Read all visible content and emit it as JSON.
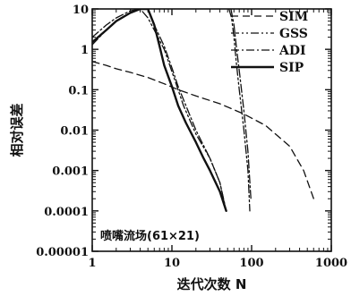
{
  "chart_data": {
    "type": "line",
    "title": "",
    "xlabel": "迭代次数 N",
    "ylabel": "相对误差",
    "x_scale": "log",
    "y_scale": "log",
    "xlim": [
      1,
      1000
    ],
    "ylim": [
      1e-05,
      10
    ],
    "x_ticks": [
      1,
      10,
      100,
      1000
    ],
    "x_tick_labels": [
      "1",
      "10",
      "100",
      "1000"
    ],
    "y_ticks": [
      1e-05,
      0.0001,
      0.001,
      0.01,
      0.1,
      1,
      10
    ],
    "y_tick_labels": [
      "0.00001",
      "0.0001",
      "0.001",
      "0.01",
      "0.1",
      "1",
      "10"
    ],
    "grid": false,
    "legend_position": "top-right",
    "annotation": "喷嘴流场(61×21)",
    "series": [
      {
        "name": "SIM",
        "style": "dashed",
        "x": [
          1,
          1.5,
          2,
          3,
          5,
          8,
          12,
          20,
          40,
          80,
          150,
          300,
          450,
          600
        ],
        "y": [
          0.5,
          0.4,
          0.33,
          0.27,
          0.2,
          0.14,
          0.1,
          0.07,
          0.045,
          0.025,
          0.013,
          0.004,
          0.001,
          0.0002
        ]
      },
      {
        "name": "GSS",
        "style": "dash-dot-dot",
        "x": [
          1,
          1.5,
          2,
          3,
          3.6
        ],
        "y": [
          1.3,
          3,
          5,
          8,
          10
        ],
        "segments": [
          {
            "x": [
              1,
              1.5,
              2,
              3,
              3.6
            ],
            "y": [
              1.3,
              3,
              5,
              8,
              10
            ]
          },
          {
            "x": [
              2.5,
              3,
              4,
              5,
              6,
              8,
              10,
              14,
              20,
              30,
              40,
              48
            ],
            "y": [
              10,
              10,
              10,
              6,
              3,
              1,
              0.28,
              0.04,
              0.008,
              0.002,
              0.0005,
              0.0001
            ]
          },
          {
            "x": [
              52,
              56,
              60,
              64,
              70,
              80,
              90,
              95
            ],
            "y": [
              10,
              6,
              2,
              0.5,
              0.1,
              0.01,
              0.001,
              0.0001
            ]
          }
        ]
      },
      {
        "name": "ADI",
        "style": "dash-dot",
        "segments": [
          {
            "x": [
              1,
              1.5,
              2,
              3,
              4
            ],
            "y": [
              2,
              4,
              6,
              9,
              10
            ]
          },
          {
            "x": [
              5,
              6,
              8,
              10,
              12,
              15,
              20,
              30,
              40,
              48
            ],
            "y": [
              10,
              4,
              1.2,
              0.35,
              0.12,
              0.04,
              0.01,
              0.002,
              0.0005,
              0.0001
            ]
          },
          {
            "x": [
              55,
              60,
              65,
              70,
              80,
              90,
              98
            ],
            "y": [
              10,
              4,
              1,
              0.3,
              0.03,
              0.003,
              0.0002
            ]
          }
        ]
      },
      {
        "name": "SIP",
        "style": "solid",
        "segments": [
          {
            "x": [
              1,
              1.5,
              2,
              3,
              4,
              5,
              6,
              7,
              8,
              10,
              12,
              15,
              20,
              25,
              30,
              40,
              48
            ],
            "y": [
              1.5,
              3,
              5,
              8,
              10,
              10,
              4,
              1.2,
              0.4,
              0.12,
              0.04,
              0.015,
              0.005,
              0.002,
              0.001,
              0.0003,
              0.0001
            ]
          }
        ]
      }
    ]
  }
}
